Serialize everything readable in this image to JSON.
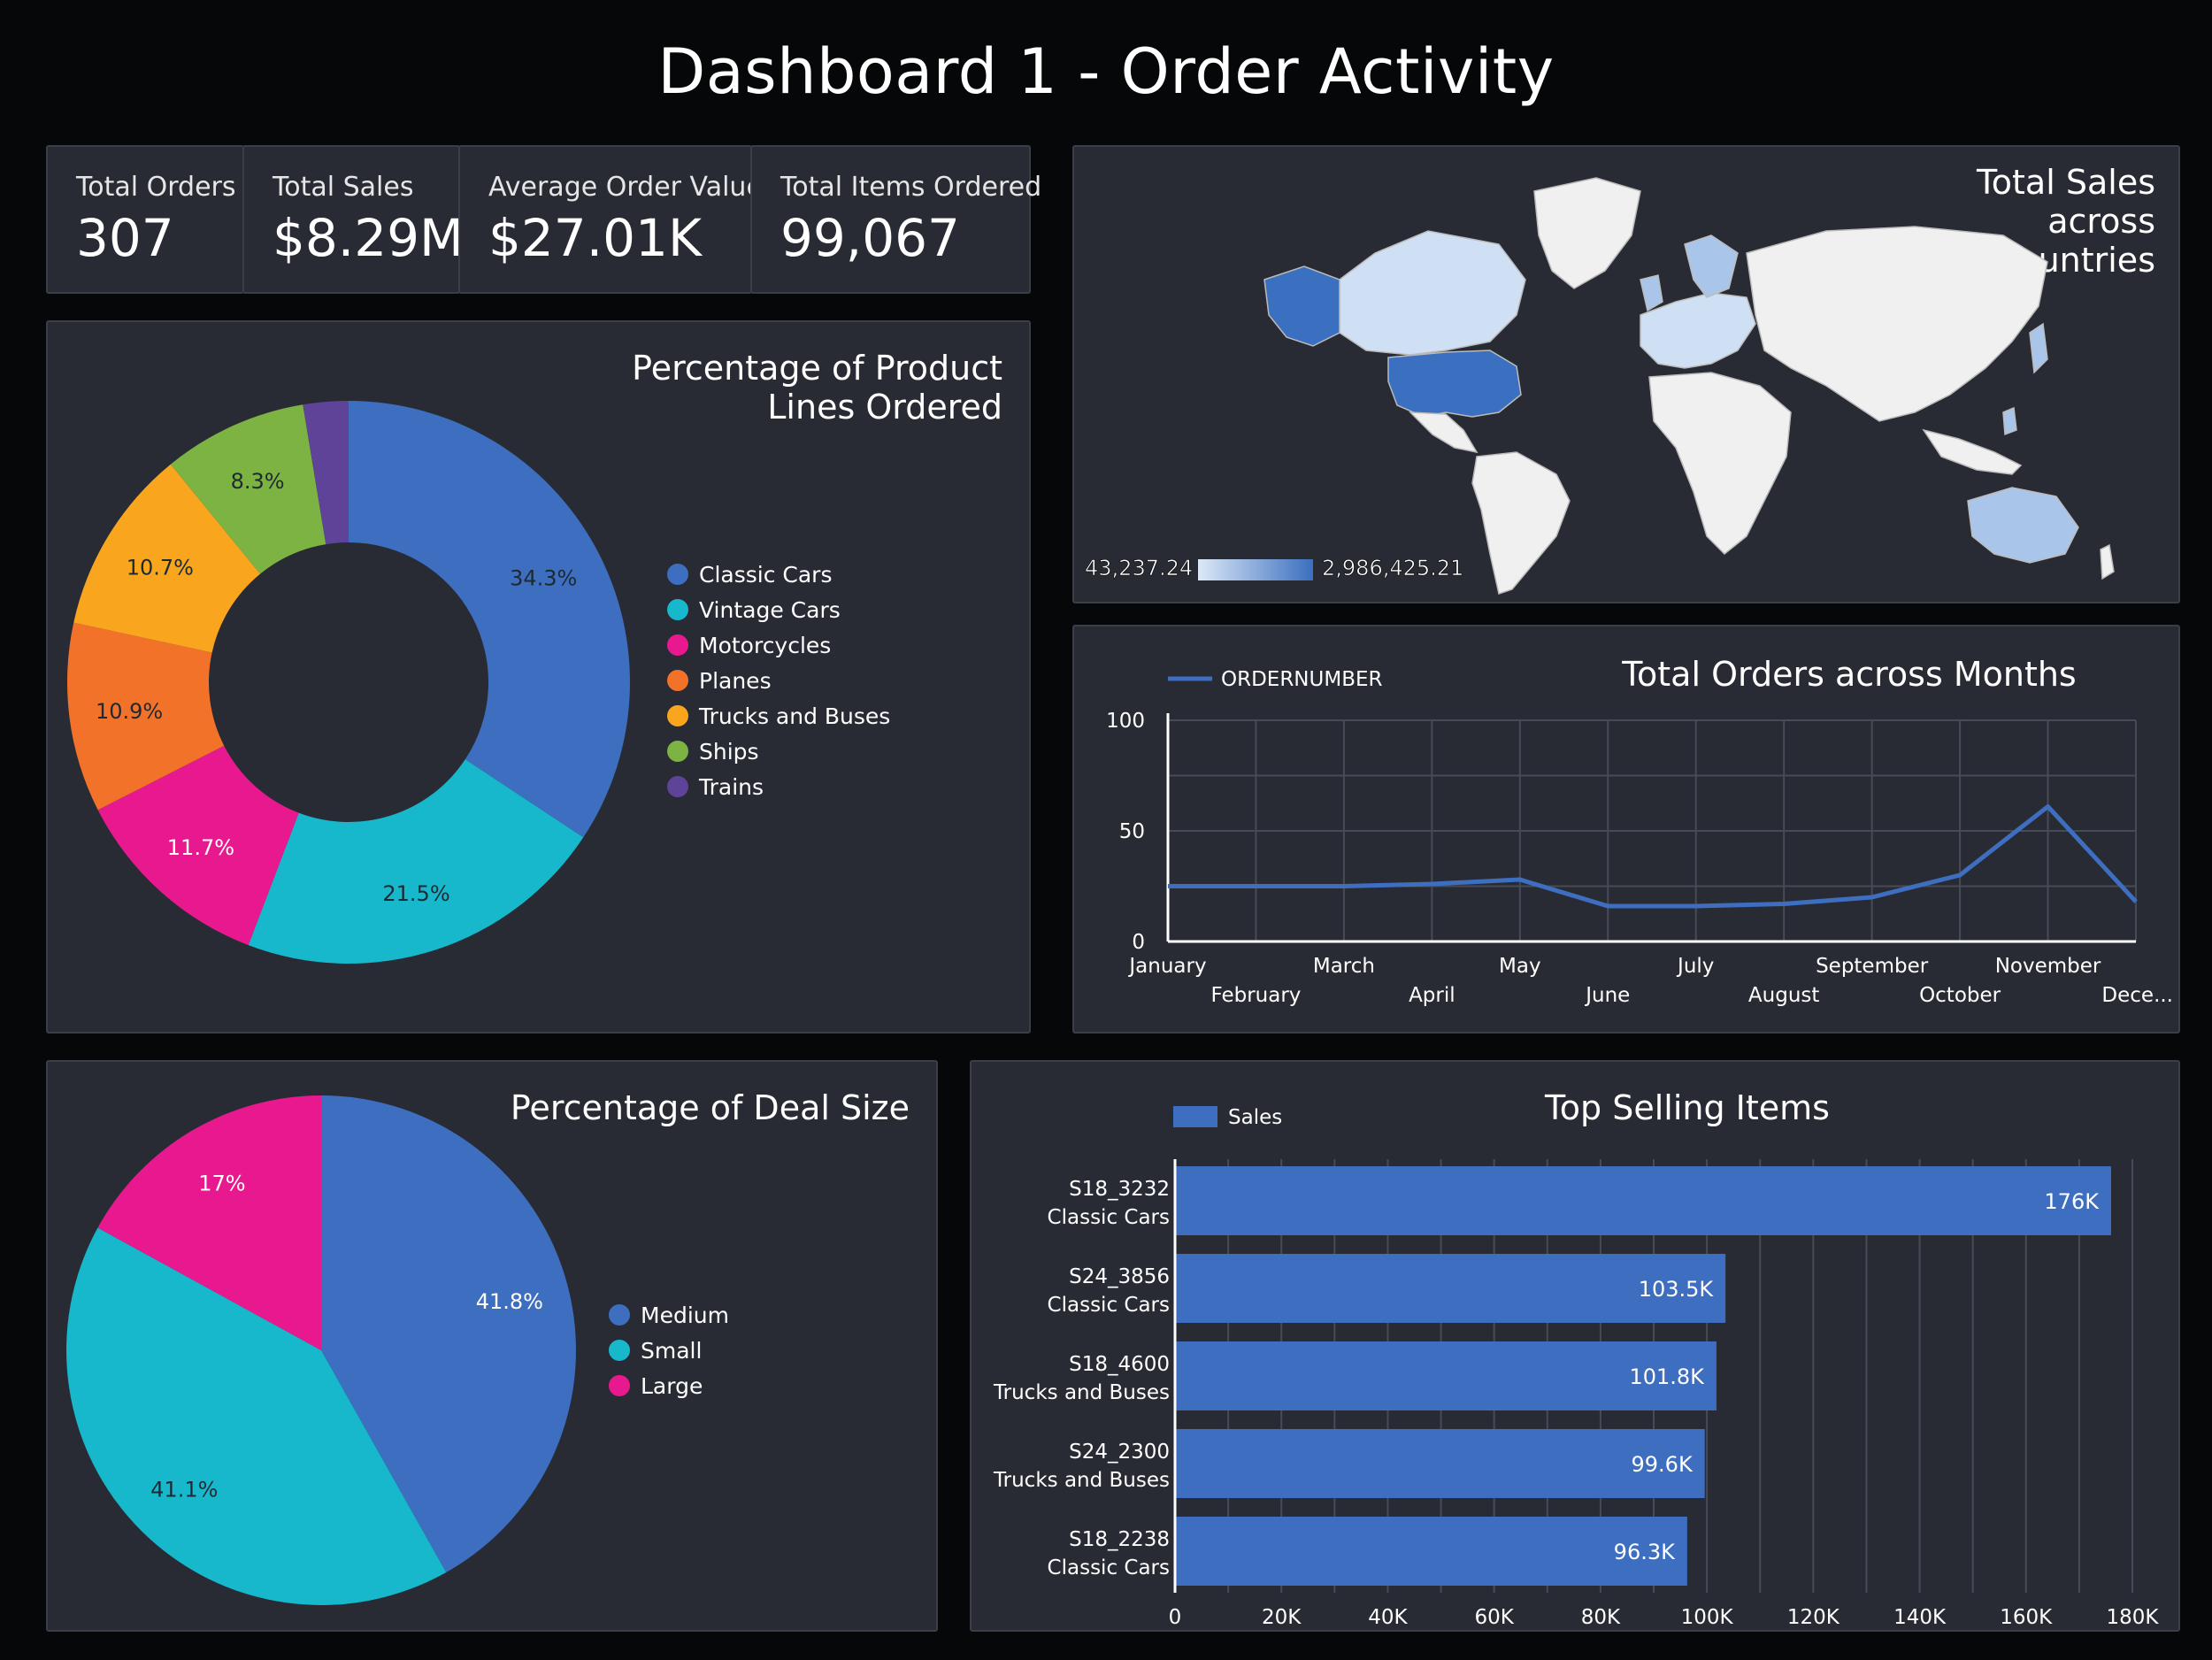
{
  "dashboard_title": "Dashboard 1 - Order Activity",
  "kpis": [
    {
      "label": "Total Orders",
      "value": "307"
    },
    {
      "label": "Total Sales",
      "value": "$8.29M"
    },
    {
      "label": "Average Order Value",
      "value": "$27.01K"
    },
    {
      "label": "Total Items Ordered",
      "value": "99,067"
    }
  ],
  "map": {
    "title_lines": [
      "Total Sales",
      "across",
      "Countries"
    ],
    "legend_min": "43,237.24",
    "legend_max": "2,986,425.21",
    "colors": {
      "low": "#dce8f7",
      "high": "#3b6fbf",
      "base": "#f0f0f0"
    }
  },
  "chart_data": [
    {
      "type": "pie",
      "title_lines": [
        "Percentage of Product",
        "Lines Ordered"
      ],
      "donut": true,
      "categories": [
        "Classic Cars",
        "Vintage Cars",
        "Motorcycles",
        "Planes",
        "Trucks and Buses",
        "Ships",
        "Trains"
      ],
      "values": [
        34.3,
        21.5,
        11.7,
        10.9,
        10.7,
        8.3,
        2.6
      ],
      "labels": [
        "34.3%",
        "21.5%",
        "11.7%",
        "10.9%",
        "10.7%",
        "8.3%",
        ""
      ],
      "colors": [
        "#3d6ebf",
        "#17b7cc",
        "#e8198f",
        "#f2722a",
        "#f9a61e",
        "#7cb342",
        "#5e4399"
      ],
      "legend_position": "right"
    },
    {
      "type": "line",
      "title": "Total Orders across Months",
      "series_name": "ORDERNUMBER",
      "categories": [
        "January",
        "February",
        "March",
        "April",
        "May",
        "June",
        "July",
        "August",
        "September",
        "October",
        "November",
        "Dece..."
      ],
      "values": [
        25,
        25,
        25,
        26,
        28,
        16,
        16,
        17,
        20,
        30,
        61,
        18
      ],
      "yticks": [
        "0",
        "50",
        "100"
      ],
      "ylim": [
        0,
        100
      ],
      "grid": true,
      "color": "#3d6ebf",
      "legend_position": "top-left"
    },
    {
      "type": "pie",
      "title": "Percentage of Deal Size",
      "categories": [
        "Medium",
        "Small",
        "Large"
      ],
      "values": [
        41.8,
        41.1,
        17
      ],
      "labels": [
        "41.8%",
        "41.1%",
        "17%"
      ],
      "colors": [
        "#3d6ebf",
        "#17b7cc",
        "#e8198f"
      ],
      "legend_position": "right"
    },
    {
      "type": "bar",
      "orientation": "horizontal",
      "title": "Top Selling Items",
      "series_name": "Sales",
      "categories": [
        {
          "code": "S18_3232",
          "line": "Classic Cars"
        },
        {
          "code": "S24_3856",
          "line": "Classic Cars"
        },
        {
          "code": "S18_4600",
          "line": "Trucks and Buses"
        },
        {
          "code": "S24_2300",
          "line": "Trucks and Buses"
        },
        {
          "code": "S18_2238",
          "line": "Classic Cars"
        }
      ],
      "values": [
        176000,
        103500,
        101800,
        99600,
        96300
      ],
      "labels": [
        "176K",
        "103.5K",
        "101.8K",
        "99.6K",
        "96.3K"
      ],
      "xticks": [
        "0",
        "20K",
        "40K",
        "60K",
        "80K",
        "100K",
        "120K",
        "140K",
        "160K",
        "180K"
      ],
      "xlim": [
        0,
        180000
      ],
      "grid": true,
      "color": "#3d6ebf",
      "legend_position": "top-left"
    }
  ]
}
